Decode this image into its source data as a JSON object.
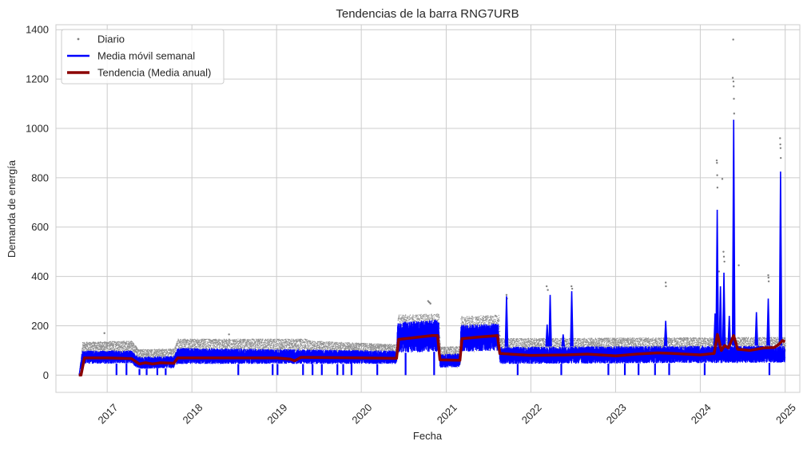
{
  "chart_data": {
    "type": "line",
    "title": "Tendencias de la barra RNG7URB",
    "xlabel": "Fecha",
    "ylabel": "Demanda de energía",
    "x_range": [
      "2016-05-25",
      "2025-03-05"
    ],
    "ylim": [
      -70,
      1420
    ],
    "grid": true,
    "legend_position": "top-left",
    "x_ticks": [
      {
        "label": "2017",
        "date": "2017-01-01"
      },
      {
        "label": "2018",
        "date": "2018-01-01"
      },
      {
        "label": "2019",
        "date": "2019-01-01"
      },
      {
        "label": "2020",
        "date": "2020-01-01"
      },
      {
        "label": "2021",
        "date": "2021-01-01"
      },
      {
        "label": "2022",
        "date": "2022-01-01"
      },
      {
        "label": "2023",
        "date": "2023-01-01"
      },
      {
        "label": "2024",
        "date": "2024-01-01"
      },
      {
        "label": "2025",
        "date": "2025-01-01"
      }
    ],
    "y_ticks": [
      0,
      200,
      400,
      600,
      800,
      1000,
      1200,
      1400
    ],
    "series": [
      {
        "name": "Diario",
        "style": "scatter",
        "color": "#808080",
        "band_upper": [
          [
            "2016-09-01",
            0
          ],
          [
            "2016-09-15",
            135
          ],
          [
            "2017-04-15",
            140
          ],
          [
            "2017-05-15",
            105
          ],
          [
            "2017-10-15",
            108
          ],
          [
            "2017-11-01",
            148
          ],
          [
            "2019-05-01",
            148
          ],
          [
            "2019-06-01",
            140
          ],
          [
            "2020-06-01",
            125
          ],
          [
            "2020-06-05",
            245
          ],
          [
            "2020-11-30",
            250
          ],
          [
            "2020-12-05",
            115
          ],
          [
            "2021-03-01",
            118
          ],
          [
            "2021-03-05",
            240
          ],
          [
            "2021-08-15",
            245
          ],
          [
            "2021-08-20",
            150
          ],
          [
            "2024-12-31",
            155
          ]
        ],
        "band_lower": [
          [
            "2016-09-01",
            0
          ],
          [
            "2016-09-15",
            60
          ],
          [
            "2017-04-15",
            62
          ],
          [
            "2017-05-15",
            30
          ],
          [
            "2017-10-15",
            32
          ],
          [
            "2017-11-01",
            55
          ],
          [
            "2020-06-01",
            50
          ],
          [
            "2020-06-05",
            95
          ],
          [
            "2020-11-30",
            100
          ],
          [
            "2020-12-05",
            30
          ],
          [
            "2021-03-01",
            32
          ],
          [
            "2021-03-05",
            95
          ],
          [
            "2021-08-15",
            98
          ],
          [
            "2021-08-20",
            55
          ],
          [
            "2024-12-31",
            60
          ]
        ],
        "outliers": [
          [
            "2016-12-20",
            170
          ],
          [
            "2018-06-10",
            165
          ],
          [
            "2020-10-15",
            300
          ],
          [
            "2020-10-20",
            295
          ],
          [
            "2020-10-25",
            290
          ],
          [
            "2021-09-18",
            325
          ],
          [
            "2021-09-20",
            310
          ],
          [
            "2022-03-10",
            360
          ],
          [
            "2022-03-15",
            345
          ],
          [
            "2022-06-25",
            360
          ],
          [
            "2022-06-28",
            350
          ],
          [
            "2023-08-05",
            375
          ],
          [
            "2023-08-06",
            360
          ],
          [
            "2024-03-12",
            870
          ],
          [
            "2024-03-13",
            860
          ],
          [
            "2024-03-14",
            810
          ],
          [
            "2024-03-15",
            760
          ],
          [
            "2024-03-22",
            420
          ],
          [
            "2024-04-05",
            795
          ],
          [
            "2024-04-10",
            500
          ],
          [
            "2024-04-12",
            480
          ],
          [
            "2024-04-14",
            460
          ],
          [
            "2024-05-20",
            1205
          ],
          [
            "2024-05-22",
            1360
          ],
          [
            "2024-05-23",
            1190
          ],
          [
            "2024-05-24",
            1170
          ],
          [
            "2024-05-25",
            1120
          ],
          [
            "2024-05-26",
            1060
          ],
          [
            "2024-06-15",
            445
          ],
          [
            "2024-10-20",
            405
          ],
          [
            "2024-10-21",
            395
          ],
          [
            "2024-10-22",
            380
          ],
          [
            "2024-12-10",
            960
          ],
          [
            "2024-12-11",
            935
          ],
          [
            "2024-12-12",
            920
          ],
          [
            "2024-12-13",
            880
          ]
        ]
      },
      {
        "name": "Media móvil semanal",
        "style": "line",
        "color": "#0000ff",
        "band_upper": [
          [
            "2016-09-01",
            0
          ],
          [
            "2016-09-15",
            100
          ],
          [
            "2017-04-15",
            100
          ],
          [
            "2017-05-15",
            75
          ],
          [
            "2017-10-15",
            78
          ],
          [
            "2017-11-01",
            110
          ],
          [
            "2020-06-01",
            100
          ],
          [
            "2020-06-05",
            215
          ],
          [
            "2020-11-30",
            225
          ],
          [
            "2020-12-05",
            85
          ],
          [
            "2021-03-01",
            88
          ],
          [
            "2021-03-05",
            205
          ],
          [
            "2021-08-15",
            210
          ],
          [
            "2021-08-20",
            115
          ],
          [
            "2024-12-31",
            120
          ]
        ],
        "band_lower": [
          [
            "2016-09-01",
            0
          ],
          [
            "2016-09-15",
            45
          ],
          [
            "2017-04-15",
            48
          ],
          [
            "2017-05-15",
            25
          ],
          [
            "2017-10-15",
            28
          ],
          [
            "2017-11-01",
            45
          ],
          [
            "2020-06-01",
            45
          ],
          [
            "2020-06-05",
            90
          ],
          [
            "2020-11-30",
            95
          ],
          [
            "2020-12-05",
            30
          ],
          [
            "2021-03-01",
            32
          ],
          [
            "2021-03-05",
            95
          ],
          [
            "2021-08-15",
            98
          ],
          [
            "2021-08-20",
            45
          ],
          [
            "2024-12-31",
            50
          ]
        ],
        "spikes_up": [
          [
            "2021-09-18",
            320
          ],
          [
            "2022-03-12",
            205
          ],
          [
            "2022-03-25",
            325
          ],
          [
            "2022-05-20",
            165
          ],
          [
            "2022-06-26",
            340
          ],
          [
            "2023-08-05",
            220
          ],
          [
            "2024-03-05",
            250
          ],
          [
            "2024-03-14",
            670
          ],
          [
            "2024-03-28",
            360
          ],
          [
            "2024-04-12",
            415
          ],
          [
            "2024-05-05",
            240
          ],
          [
            "2024-05-24",
            1035
          ],
          [
            "2024-08-30",
            255
          ],
          [
            "2024-10-20",
            310
          ],
          [
            "2024-12-12",
            825
          ]
        ],
        "dips": [
          "2017-02-10",
          "2017-03-25",
          "2017-05-20",
          "2017-06-20",
          "2017-08-05",
          "2017-09-10",
          "2018-07-20",
          "2018-12-15",
          "2019-01-05",
          "2019-04-25",
          "2019-06-05",
          "2019-07-15",
          "2019-09-20",
          "2019-10-15",
          "2019-11-20",
          "2020-03-10",
          "2020-07-10",
          "2020-11-10",
          "2021-11-05",
          "2022-05-12",
          "2022-12-01",
          "2023-02-10",
          "2023-04-10",
          "2023-06-20",
          "2023-08-20",
          "2024-01-20",
          "2024-10-25"
        ]
      },
      {
        "name": "Tendencia (Media anual)",
        "style": "line",
        "color": "#8b0000",
        "points": [
          [
            "2016-09-01",
            0
          ],
          [
            "2016-09-10",
            0
          ],
          [
            "2016-09-25",
            70
          ],
          [
            "2017-01-01",
            70
          ],
          [
            "2017-04-15",
            67
          ],
          [
            "2017-05-20",
            45
          ],
          [
            "2017-06-15",
            50
          ],
          [
            "2017-07-15",
            45
          ],
          [
            "2017-08-20",
            50
          ],
          [
            "2017-10-15",
            48
          ],
          [
            "2017-11-01",
            70
          ],
          [
            "2018-06-01",
            70
          ],
          [
            "2019-01-01",
            70
          ],
          [
            "2019-03-01",
            65
          ],
          [
            "2019-03-20",
            58
          ],
          [
            "2019-04-15",
            72
          ],
          [
            "2020-01-01",
            70
          ],
          [
            "2020-05-20",
            68
          ],
          [
            "2020-06-01",
            68
          ],
          [
            "2020-06-10",
            145
          ],
          [
            "2020-08-01",
            150
          ],
          [
            "2020-11-01",
            160
          ],
          [
            "2020-11-25",
            160
          ],
          [
            "2020-12-05",
            62
          ],
          [
            "2021-03-01",
            60
          ],
          [
            "2021-03-10",
            148
          ],
          [
            "2021-06-01",
            155
          ],
          [
            "2021-08-10",
            160
          ],
          [
            "2021-08-20",
            88
          ],
          [
            "2021-10-01",
            85
          ],
          [
            "2022-01-01",
            80
          ],
          [
            "2022-06-01",
            82
          ],
          [
            "2022-09-01",
            85
          ],
          [
            "2023-01-01",
            78
          ],
          [
            "2023-04-01",
            85
          ],
          [
            "2023-07-01",
            90
          ],
          [
            "2023-09-01",
            88
          ],
          [
            "2024-01-01",
            82
          ],
          [
            "2024-03-01",
            88
          ],
          [
            "2024-03-15",
            165
          ],
          [
            "2024-04-01",
            100
          ],
          [
            "2024-04-15",
            120
          ],
          [
            "2024-05-01",
            110
          ],
          [
            "2024-05-24",
            160
          ],
          [
            "2024-06-10",
            105
          ],
          [
            "2024-08-01",
            100
          ],
          [
            "2024-10-01",
            110
          ],
          [
            "2024-11-15",
            112
          ],
          [
            "2024-12-05",
            125
          ],
          [
            "2024-12-20",
            140
          ],
          [
            "2024-12-31",
            135
          ]
        ]
      }
    ]
  },
  "legend": {
    "items": [
      {
        "label": "Diario",
        "color": "#808080",
        "kind": "dot"
      },
      {
        "label": "Media móvil semanal",
        "color": "#0000ff",
        "kind": "line"
      },
      {
        "label": "Tendencia (Media anual)",
        "color": "#8b0000",
        "kind": "line"
      }
    ]
  },
  "colors": {
    "grid": "#cccccc",
    "axis": "#cccccc",
    "text": "#262626"
  }
}
